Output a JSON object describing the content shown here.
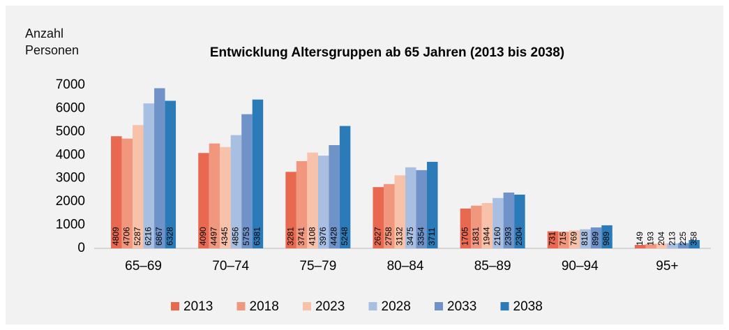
{
  "chart_data": {
    "type": "bar",
    "title": "Entwicklung Altersgruppen  ab 65 Jahren (2013 bis 2038)",
    "y_label": "Anzahl Personen",
    "categories": [
      "65–69",
      "70–74",
      "75–79",
      "80–84",
      "85–89",
      "90–94",
      "95+"
    ],
    "series": [
      {
        "name": "2013",
        "color": "#e8694f",
        "values": [
          4809,
          4090,
          3281,
          2627,
          1705,
          731,
          149
        ]
      },
      {
        "name": "2018",
        "color": "#f0977d",
        "values": [
          4706,
          4497,
          3741,
          2758,
          1831,
          715,
          193
        ]
      },
      {
        "name": "2023",
        "color": "#f8c1a9",
        "values": [
          5287,
          4345,
          4108,
          3132,
          1944,
          769,
          204
        ]
      },
      {
        "name": "2028",
        "color": "#a8bfe1",
        "values": [
          6216,
          4856,
          3976,
          3475,
          2160,
          818,
          213
        ]
      },
      {
        "name": "2033",
        "color": "#6f93c9",
        "values": [
          6867,
          5753,
          4428,
          3354,
          2393,
          899,
          225
        ]
      },
      {
        "name": "2038",
        "color": "#2b7bb9",
        "values": [
          6328,
          6381,
          5248,
          3711,
          2304,
          989,
          358
        ]
      }
    ],
    "ylim": [
      0,
      7000
    ],
    "yticks": [
      0,
      1000,
      2000,
      3000,
      4000,
      5000,
      6000,
      7000
    ],
    "grid": false,
    "legend": "bottom"
  }
}
